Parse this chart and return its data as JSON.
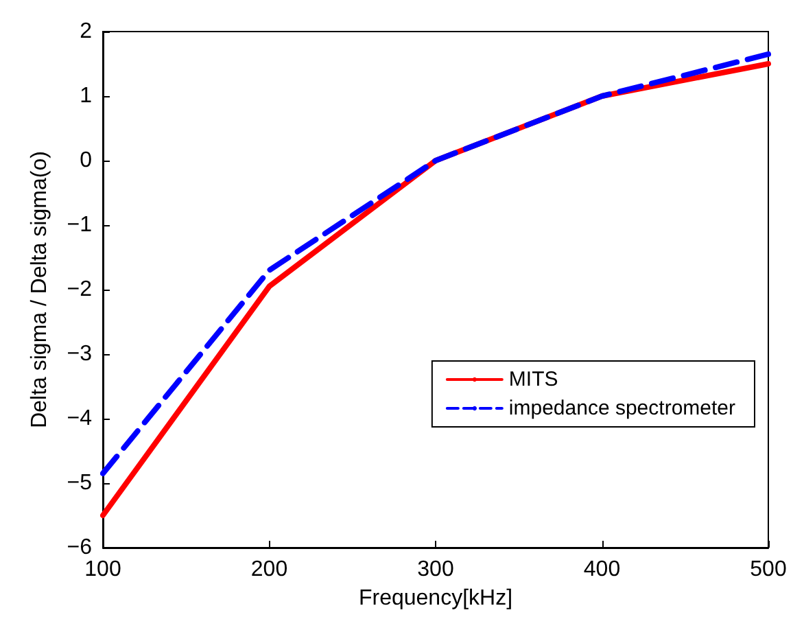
{
  "chart_data": {
    "type": "line",
    "xlabel": "Frequency[kHz]",
    "ylabel": "Delta sigma / Delta sigma(o)",
    "x": [
      100,
      200,
      300,
      400,
      500
    ],
    "series": [
      {
        "name": "MITS",
        "color": "#ff0000",
        "line_style": "solid",
        "values": [
          -5.5,
          -1.95,
          0,
          1,
          1.5
        ]
      },
      {
        "name": "impedance spectrometer",
        "color": "#0000ff",
        "line_style": "dashed",
        "values": [
          -4.85,
          -1.7,
          0,
          1,
          1.65
        ]
      }
    ],
    "xlim": [
      100,
      500
    ],
    "xticks": [
      100,
      200,
      300,
      400,
      500
    ],
    "ylim": [
      -6,
      2
    ],
    "yticks": [
      -6,
      -5,
      -4,
      -3,
      -2,
      -1,
      0,
      1,
      2
    ],
    "grid": false,
    "legend": "right",
    "marker": "none"
  }
}
